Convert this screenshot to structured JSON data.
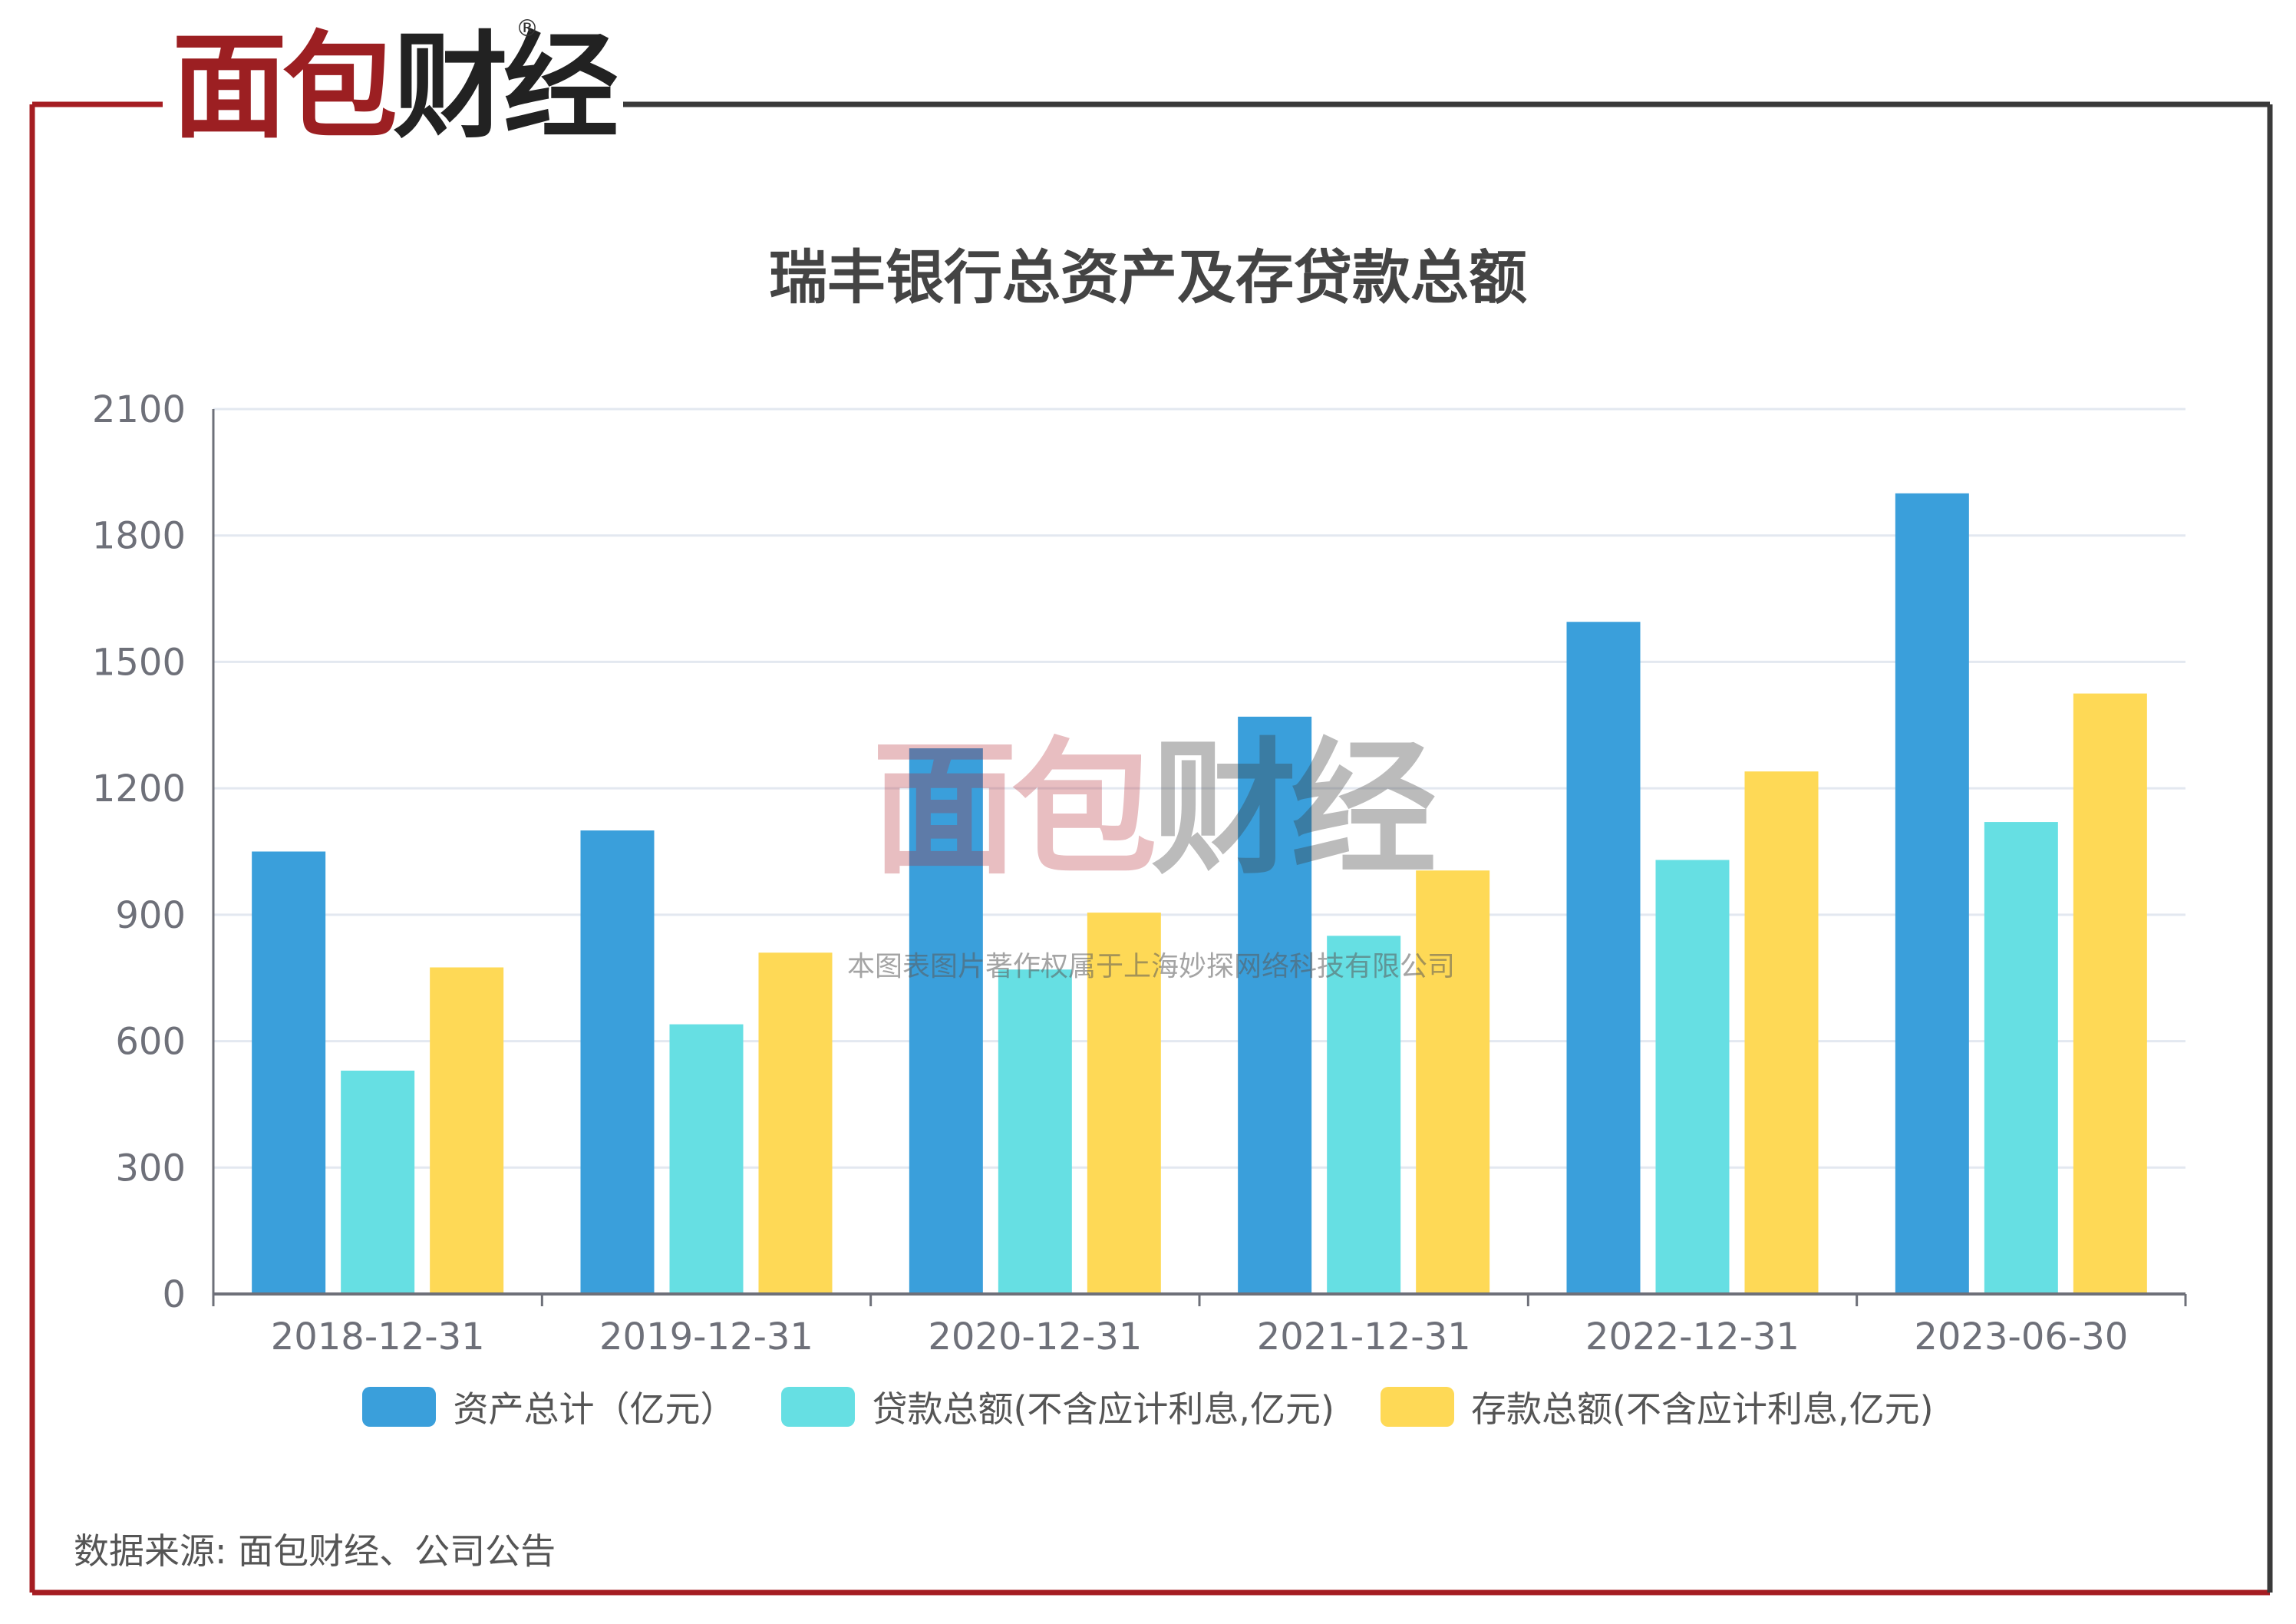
{
  "brand": {
    "logo_text": "面包财经",
    "registered_mark": "®"
  },
  "watermark": {
    "logo_text": "面包财经",
    "caption": "本图表图片著作权属于上海妙探网络科技有限公司"
  },
  "source_note": "数据来源: 面包财经、公司公告",
  "colors": {
    "frame_red": "#a51d22",
    "frame_dark": "#3a3a3a",
    "gridline": "#e3e8f0",
    "axis": "#6e7079"
  },
  "chart_data": {
    "type": "bar",
    "title": "瑞丰银行总资产及存贷款总额",
    "categories": [
      "2018-12-31",
      "2019-12-31",
      "2020-12-31",
      "2021-12-31",
      "2022-12-31",
      "2023-06-30"
    ],
    "series": [
      {
        "name": "资产总计（亿元）",
        "color": "#3a9fdb",
        "values": [
          1050,
          1100,
          1295,
          1370,
          1595,
          1900
        ]
      },
      {
        "name": "贷款总额(不含应计利息,亿元)",
        "color": "#66dfe3",
        "values": [
          530,
          640,
          770,
          850,
          1030,
          1120
        ]
      },
      {
        "name": "存款总额(不含应计利息,亿元)",
        "color": "#fed956",
        "values": [
          775,
          810,
          905,
          1005,
          1240,
          1425
        ]
      }
    ],
    "ylim": [
      0,
      2100
    ],
    "yticks": [
      0,
      300,
      600,
      900,
      1200,
      1500,
      1800,
      2100
    ],
    "xlabel": "",
    "ylabel": "",
    "grid": true,
    "legend_position": "bottom"
  }
}
